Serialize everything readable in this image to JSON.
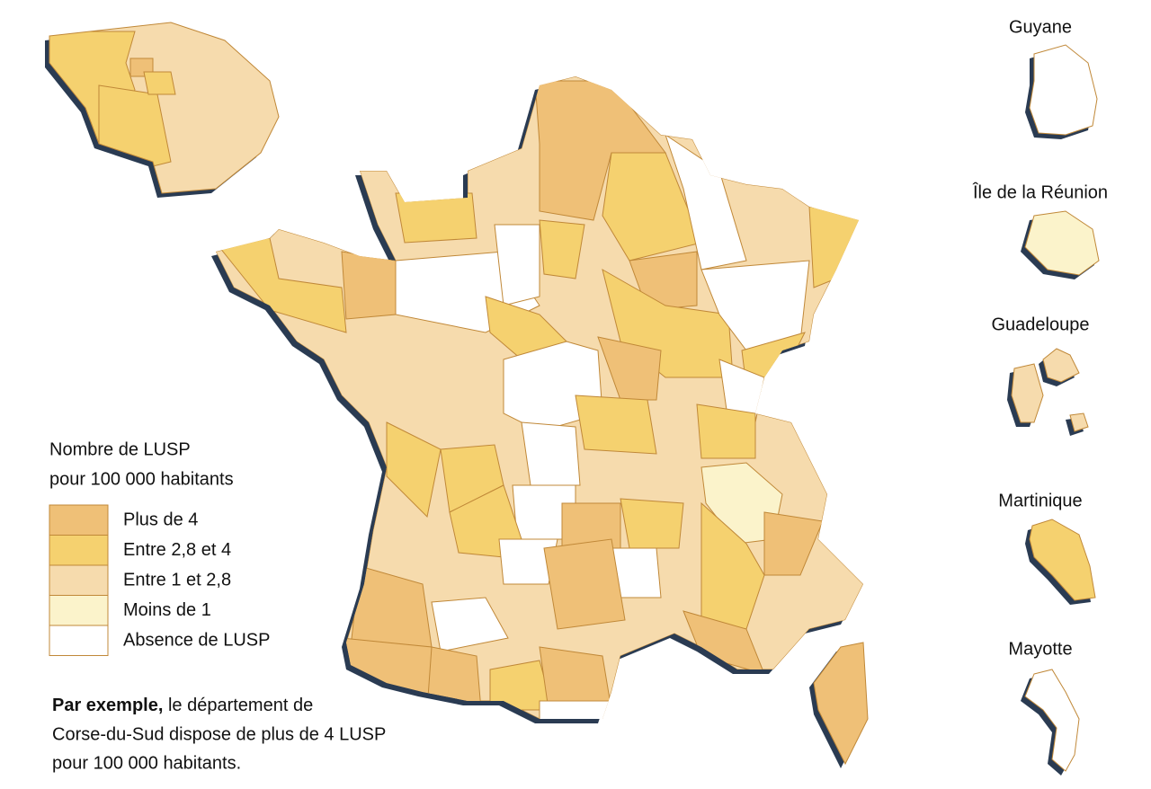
{
  "legend": {
    "title": [
      "Nombre de LUSP",
      "pour 100 000 habitants"
    ],
    "items": [
      {
        "label": "Plus de 4",
        "color": "#efc077"
      },
      {
        "label": "Entre 2,8 et 4",
        "color": "#f5d16f"
      },
      {
        "label": "Entre 1 et 2,8",
        "color": "#f6dbad"
      },
      {
        "label": "Moins de 1",
        "color": "#fbf3cb"
      },
      {
        "label": "Absence de LUSP",
        "color": "#ffffff"
      }
    ]
  },
  "territories": [
    {
      "name": "Guyane",
      "color": "#ffffff"
    },
    {
      "name": "Île de la Réunion",
      "color": "#fbf3cb"
    },
    {
      "name": "Guadeloupe",
      "color": "#f6dbad"
    },
    {
      "name": "Martinique",
      "color": "#f5d16f"
    },
    {
      "name": "Mayotte",
      "color": "#ffffff"
    }
  ],
  "note": {
    "bold": "Par exemple,",
    "lines": [
      " le département de",
      "Corse-du-Sud dispose de plus de 4 LUSP",
      "pour 100 000 habitants."
    ]
  }
}
